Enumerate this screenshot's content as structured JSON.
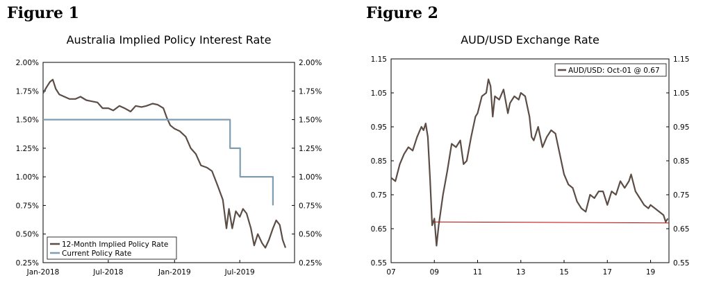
{
  "figures": [
    {
      "label": "Figure 1",
      "title": "Australia Implied Policy Interest Rate"
    },
    {
      "label": "Figure 2",
      "title": "AUD/USD Exchange Rate"
    }
  ],
  "chart_data": [
    {
      "type": "line",
      "title": "Australia Implied Policy Interest Rate",
      "xlabel": "",
      "ylabel": "",
      "x_ticks": [
        "Jan-2018",
        "Jul-2018",
        "Jan-2019",
        "Jul-2019"
      ],
      "y_ticks_left": [
        "2.00%",
        "1.75%",
        "1.50%",
        "1.25%",
        "1.00%",
        "0.75%",
        "0.50%",
        "0.25%"
      ],
      "y_ticks_right": [
        "2.00%",
        "1.75%",
        "1.50%",
        "1.25%",
        "1.00%",
        "0.75%",
        "0.50%",
        "0.25%"
      ],
      "xlim": [
        "2018-01-01",
        "2019-11-30"
      ],
      "ylim": [
        0.25,
        2.0
      ],
      "legend": "bottom-left",
      "grid": false,
      "series": [
        {
          "name": "12-Month Implied Policy Rate",
          "color": "#5b4d45",
          "points": [
            [
              "2018-01-01",
              1.73
            ],
            [
              "2018-01-10",
              1.78
            ],
            [
              "2018-01-20",
              1.83
            ],
            [
              "2018-01-28",
              1.85
            ],
            [
              "2018-02-05",
              1.77
            ],
            [
              "2018-02-15",
              1.72
            ],
            [
              "2018-03-01",
              1.7
            ],
            [
              "2018-03-15",
              1.68
            ],
            [
              "2018-04-01",
              1.68
            ],
            [
              "2018-04-15",
              1.7
            ],
            [
              "2018-05-01",
              1.67
            ],
            [
              "2018-05-15",
              1.66
            ],
            [
              "2018-06-01",
              1.65
            ],
            [
              "2018-06-15",
              1.6
            ],
            [
              "2018-07-01",
              1.6
            ],
            [
              "2018-07-15",
              1.58
            ],
            [
              "2018-08-01",
              1.62
            ],
            [
              "2018-08-15",
              1.6
            ],
            [
              "2018-09-01",
              1.57
            ],
            [
              "2018-09-15",
              1.62
            ],
            [
              "2018-10-01",
              1.61
            ],
            [
              "2018-10-15",
              1.62
            ],
            [
              "2018-11-01",
              1.64
            ],
            [
              "2018-11-15",
              1.63
            ],
            [
              "2018-12-01",
              1.6
            ],
            [
              "2018-12-10",
              1.52
            ],
            [
              "2018-12-20",
              1.45
            ],
            [
              "2019-01-01",
              1.42
            ],
            [
              "2019-01-15",
              1.4
            ],
            [
              "2019-02-01",
              1.35
            ],
            [
              "2019-02-15",
              1.25
            ],
            [
              "2019-03-01",
              1.2
            ],
            [
              "2019-03-15",
              1.1
            ],
            [
              "2019-04-01",
              1.08
            ],
            [
              "2019-04-15",
              1.05
            ],
            [
              "2019-05-01",
              0.92
            ],
            [
              "2019-05-15",
              0.8
            ],
            [
              "2019-05-25",
              0.55
            ],
            [
              "2019-06-01",
              0.72
            ],
            [
              "2019-06-10",
              0.55
            ],
            [
              "2019-06-20",
              0.7
            ],
            [
              "2019-07-01",
              0.65
            ],
            [
              "2019-07-10",
              0.72
            ],
            [
              "2019-07-20",
              0.68
            ],
            [
              "2019-08-01",
              0.55
            ],
            [
              "2019-08-10",
              0.4
            ],
            [
              "2019-08-20",
              0.5
            ],
            [
              "2019-09-01",
              0.42
            ],
            [
              "2019-09-10",
              0.38
            ],
            [
              "2019-09-20",
              0.45
            ],
            [
              "2019-10-01",
              0.55
            ],
            [
              "2019-10-10",
              0.62
            ],
            [
              "2019-10-20",
              0.58
            ],
            [
              "2019-10-28",
              0.45
            ],
            [
              "2019-11-05",
              0.38
            ]
          ]
        },
        {
          "name": "Current Policy Rate",
          "color": "#7f9db1",
          "points": [
            [
              "2018-01-01",
              1.5
            ],
            [
              "2019-06-04",
              1.5
            ],
            [
              "2019-06-04",
              1.25
            ],
            [
              "2019-07-02",
              1.25
            ],
            [
              "2019-07-02",
              1.0
            ],
            [
              "2019-10-01",
              1.0
            ],
            [
              "2019-10-01",
              0.75
            ]
          ]
        }
      ]
    },
    {
      "type": "line",
      "title": "AUD/USD Exchange Rate",
      "xlabel": "",
      "ylabel": "",
      "x_ticks": [
        "07",
        "09",
        "11",
        "13",
        "15",
        "17",
        "19"
      ],
      "y_ticks_left": [
        "1.15",
        "1.05",
        "0.95",
        "0.85",
        "0.75",
        "0.65",
        "0.55"
      ],
      "y_ticks_right": [
        "1.15",
        "1.05",
        "0.95",
        "0.85",
        "0.75",
        "0.65",
        "0.55"
      ],
      "xlim": [
        2007.0,
        2019.85
      ],
      "ylim": [
        0.55,
        1.15
      ],
      "legend": "top-right",
      "grid": false,
      "series": [
        {
          "name": "AUD/USD: Oct-01 @ 0.67",
          "color": "#5b4d45",
          "points": [
            [
              2007.0,
              0.8
            ],
            [
              2007.2,
              0.79
            ],
            [
              2007.4,
              0.84
            ],
            [
              2007.6,
              0.87
            ],
            [
              2007.8,
              0.89
            ],
            [
              2008.0,
              0.88
            ],
            [
              2008.2,
              0.92
            ],
            [
              2008.4,
              0.95
            ],
            [
              2008.5,
              0.94
            ],
            [
              2008.6,
              0.96
            ],
            [
              2008.7,
              0.92
            ],
            [
              2008.8,
              0.8
            ],
            [
              2008.9,
              0.66
            ],
            [
              2009.0,
              0.68
            ],
            [
              2009.1,
              0.6
            ],
            [
              2009.2,
              0.66
            ],
            [
              2009.4,
              0.75
            ],
            [
              2009.6,
              0.82
            ],
            [
              2009.8,
              0.9
            ],
            [
              2010.0,
              0.89
            ],
            [
              2010.2,
              0.91
            ],
            [
              2010.35,
              0.84
            ],
            [
              2010.5,
              0.85
            ],
            [
              2010.7,
              0.92
            ],
            [
              2010.9,
              0.98
            ],
            [
              2011.0,
              0.99
            ],
            [
              2011.2,
              1.04
            ],
            [
              2011.4,
              1.05
            ],
            [
              2011.5,
              1.09
            ],
            [
              2011.6,
              1.07
            ],
            [
              2011.7,
              0.98
            ],
            [
              2011.8,
              1.04
            ],
            [
              2012.0,
              1.03
            ],
            [
              2012.2,
              1.06
            ],
            [
              2012.4,
              0.99
            ],
            [
              2012.5,
              1.02
            ],
            [
              2012.7,
              1.04
            ],
            [
              2012.9,
              1.03
            ],
            [
              2013.0,
              1.05
            ],
            [
              2013.2,
              1.04
            ],
            [
              2013.4,
              0.98
            ],
            [
              2013.5,
              0.92
            ],
            [
              2013.6,
              0.91
            ],
            [
              2013.8,
              0.95
            ],
            [
              2014.0,
              0.89
            ],
            [
              2014.2,
              0.92
            ],
            [
              2014.4,
              0.94
            ],
            [
              2014.6,
              0.93
            ],
            [
              2014.8,
              0.87
            ],
            [
              2015.0,
              0.81
            ],
            [
              2015.2,
              0.78
            ],
            [
              2015.4,
              0.77
            ],
            [
              2015.6,
              0.73
            ],
            [
              2015.8,
              0.71
            ],
            [
              2016.0,
              0.7
            ],
            [
              2016.2,
              0.75
            ],
            [
              2016.4,
              0.74
            ],
            [
              2016.6,
              0.76
            ],
            [
              2016.8,
              0.76
            ],
            [
              2017.0,
              0.72
            ],
            [
              2017.2,
              0.76
            ],
            [
              2017.4,
              0.75
            ],
            [
              2017.6,
              0.79
            ],
            [
              2017.8,
              0.77
            ],
            [
              2018.0,
              0.79
            ],
            [
              2018.1,
              0.81
            ],
            [
              2018.3,
              0.76
            ],
            [
              2018.5,
              0.74
            ],
            [
              2018.7,
              0.72
            ],
            [
              2018.9,
              0.71
            ],
            [
              2019.0,
              0.72
            ],
            [
              2019.2,
              0.71
            ],
            [
              2019.4,
              0.7
            ],
            [
              2019.6,
              0.69
            ],
            [
              2019.7,
              0.67
            ],
            [
              2019.8,
              0.68
            ]
          ]
        },
        {
          "name": "",
          "color": "#c00000",
          "points": [
            [
              2009.0,
              0.67
            ],
            [
              2019.85,
              0.667
            ]
          ]
        }
      ]
    }
  ]
}
